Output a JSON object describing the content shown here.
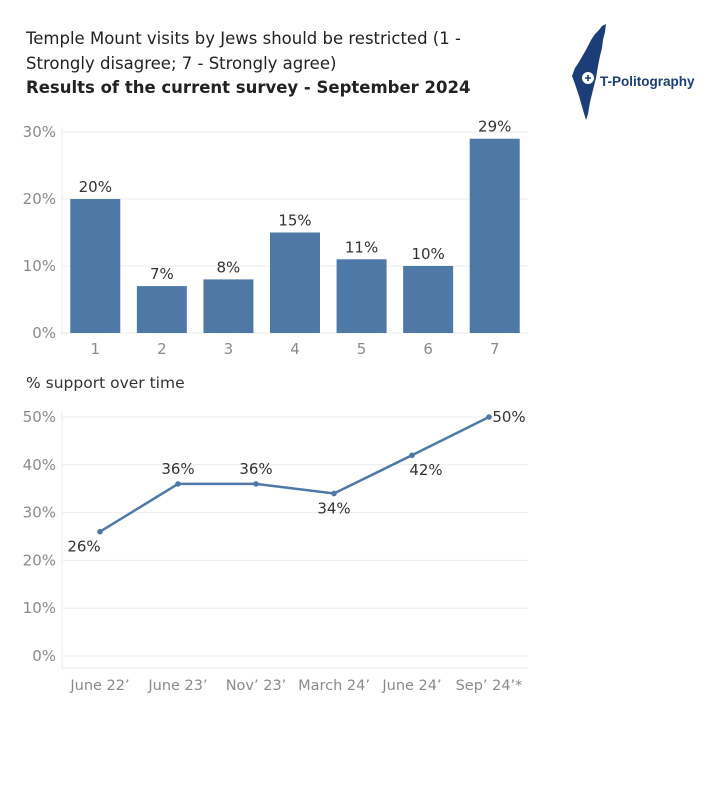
{
  "title_line1": "Temple Mount visits by Jews should be restricted (1 -",
  "title_line2": "Strongly disagree; 7 - Strongly agree)",
  "title_line3": "Results of the current survey - September 2024",
  "logo_text": "T-Politography",
  "subtitle": "% support over time",
  "colors": {
    "accent": "#4e79a7",
    "grid": "#ebebeb",
    "axis_text": "#8a8a8a",
    "label_text": "#333333",
    "logo": "#1b3d78"
  },
  "chart_data": [
    {
      "type": "bar",
      "categories": [
        "1",
        "2",
        "3",
        "4",
        "5",
        "6",
        "7"
      ],
      "values": [
        20,
        7,
        8,
        15,
        11,
        10,
        29
      ],
      "value_labels": [
        "20%",
        "7%",
        "8%",
        "15%",
        "11%",
        "10%",
        "29%"
      ],
      "ylim": [
        0,
        30
      ],
      "yticks": [
        0,
        10,
        20,
        30
      ],
      "ytick_labels": [
        "0%",
        "10%",
        "20%",
        "30%"
      ],
      "grid": true
    },
    {
      "type": "line",
      "title": "% support over time",
      "categories": [
        "June 22’",
        "June 23’",
        "Nov’ 23’",
        "March 24’",
        "June 24’",
        "Sep’ 24’*"
      ],
      "values": [
        26,
        36,
        36,
        34,
        42,
        50
      ],
      "value_labels": [
        "26%",
        "36%",
        "36%",
        "34%",
        "42%",
        "50%"
      ],
      "ylim": [
        0,
        50
      ],
      "yticks": [
        0,
        10,
        20,
        30,
        40,
        50
      ],
      "ytick_labels": [
        "0%",
        "10%",
        "20%",
        "30%",
        "40%",
        "50%"
      ],
      "grid": true
    }
  ]
}
